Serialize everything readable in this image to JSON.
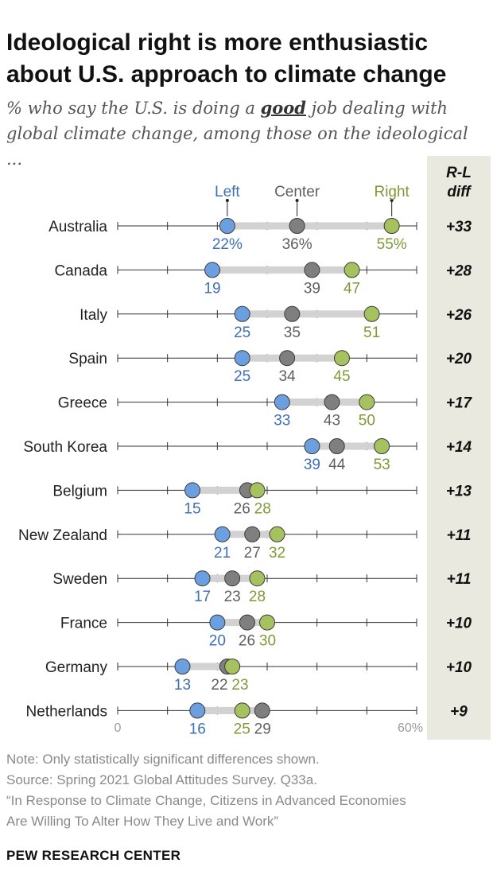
{
  "title": "Ideological right is more enthusiastic about U.S. approach to climate change",
  "subtitle": {
    "prefix": "% who say the U.S. is doing a ",
    "emphasis": "good",
    "suffix": " job dealing with global climate change, among those on the ideological ..."
  },
  "chart_data": {
    "type": "dot-plot",
    "series": [
      {
        "name": "Left",
        "color": "#6b9fe0"
      },
      {
        "name": "Center",
        "color": "#7f7f7f"
      },
      {
        "name": "Right",
        "color": "#a6c25e"
      }
    ],
    "categories": [
      "Australia",
      "Canada",
      "Italy",
      "Spain",
      "Greece",
      "South Korea",
      "Belgium",
      "New Zealand",
      "Sweden",
      "France",
      "Germany",
      "Netherlands"
    ],
    "rows": [
      {
        "country": "Australia",
        "left": 22,
        "center": 36,
        "right": 55,
        "diff": "+33",
        "left_label": "22%",
        "center_label": "36%",
        "right_label": "55%"
      },
      {
        "country": "Canada",
        "left": 19,
        "center": 39,
        "right": 47,
        "diff": "+28",
        "left_label": "19",
        "center_label": "39",
        "right_label": "47"
      },
      {
        "country": "Italy",
        "left": 25,
        "center": 35,
        "right": 51,
        "diff": "+26",
        "left_label": "25",
        "center_label": "35",
        "right_label": "51"
      },
      {
        "country": "Spain",
        "left": 25,
        "center": 34,
        "right": 45,
        "diff": "+20",
        "left_label": "25",
        "center_label": "34",
        "right_label": "45"
      },
      {
        "country": "Greece",
        "left": 33,
        "center": 43,
        "right": 50,
        "diff": "+17",
        "left_label": "33",
        "center_label": "43",
        "right_label": "50"
      },
      {
        "country": "South Korea",
        "left": 39,
        "center": 44,
        "right": 53,
        "diff": "+14",
        "left_label": "39",
        "center_label": "44",
        "right_label": "53"
      },
      {
        "country": "Belgium",
        "left": 15,
        "center": 26,
        "right": 28,
        "diff": "+13",
        "left_label": "15",
        "center_label": "26",
        "right_label": "28"
      },
      {
        "country": "New Zealand",
        "left": 21,
        "center": 27,
        "right": 32,
        "diff": "+11",
        "left_label": "21",
        "center_label": "27",
        "right_label": "32"
      },
      {
        "country": "Sweden",
        "left": 17,
        "center": 23,
        "right": 28,
        "diff": "+11",
        "left_label": "17",
        "center_label": "23",
        "right_label": "28"
      },
      {
        "country": "France",
        "left": 20,
        "center": 26,
        "right": 30,
        "diff": "+10",
        "left_label": "20",
        "center_label": "26",
        "right_label": "30"
      },
      {
        "country": "Germany",
        "left": 13,
        "center": 22,
        "right": 23,
        "diff": "+10",
        "left_label": "13",
        "center_label": "22",
        "right_label": "23"
      },
      {
        "country": "Netherlands",
        "left": 16,
        "center": 29,
        "right": 25,
        "diff": "+9",
        "left_label": "16",
        "center_label": "29",
        "right_label": "25"
      }
    ],
    "xlim": [
      0,
      60
    ],
    "x_tick_labels": [
      "0",
      "60%"
    ],
    "diff_header": [
      "R-L",
      "diff"
    ],
    "colors": {
      "left": "#6b9fe0",
      "center": "#7f7f7f",
      "right": "#a6c25e",
      "left_text": "#3f6fb5",
      "center_text": "#5f5f5f",
      "right_text": "#7e9a37",
      "range_bar": "#d2d2d2",
      "diff_column": "#e9e9df"
    }
  },
  "notes": [
    "Note: Only statistically significant differences shown.",
    "Source: Spring 2021 Global Attitudes Survey. Q33a.",
    "“In Response to Climate Change, Citizens in Advanced Economies",
    "Are Willing To Alter How They Live and Work”"
  ],
  "brand": "PEW RESEARCH CENTER"
}
